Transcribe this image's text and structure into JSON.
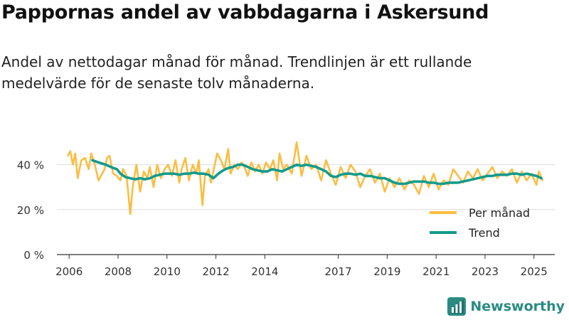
{
  "header": {
    "title": "Pappornas andel av vabbdagarna i Askersund",
    "subtitle": "Andel av nettodagar månad för månad. Trendlinjen är ett rullande medelvärde för de senaste tolv månaderna."
  },
  "brand": {
    "name": "Newsworthy",
    "color": "#2a8b82"
  },
  "chart_data": {
    "type": "line",
    "title": "Pappornas andel av vabbdagarna i Askersund",
    "xlabel": "",
    "ylabel": "",
    "xlim": [
      2005.5,
      2025.85
    ],
    "ylim": [
      0,
      50
    ],
    "yticks": [
      0,
      20,
      40
    ],
    "ytick_labels": [
      "0 %",
      "20 %",
      "40 %"
    ],
    "xticks": [
      2006,
      2008,
      2010,
      2012,
      2014,
      2017,
      2019,
      2021,
      2023,
      2025
    ],
    "xtick_labels": [
      "2006",
      "2008",
      "2010",
      "2012",
      "2014",
      "2017",
      "2019",
      "2021",
      "2023",
      "2025"
    ],
    "grid": true,
    "legend_position": "bottom-right",
    "series": [
      {
        "name": "Per månad",
        "color": "#fbbd41",
        "x": [
          2005.95,
          2006.05,
          2006.15,
          2006.25,
          2006.35,
          2006.5,
          2006.65,
          2006.8,
          2006.9,
          2007.05,
          2007.2,
          2007.35,
          2007.45,
          2007.55,
          2007.65,
          2007.8,
          2007.95,
          2008.1,
          2008.2,
          2008.35,
          2008.5,
          2008.6,
          2008.75,
          2008.9,
          2009.05,
          2009.2,
          2009.3,
          2009.45,
          2009.6,
          2009.75,
          2009.9,
          2010.05,
          2010.2,
          2010.35,
          2010.5,
          2010.6,
          2010.75,
          2010.9,
          2011.05,
          2011.2,
          2011.3,
          2011.45,
          2011.55,
          2011.7,
          2011.8,
          2011.95,
          2012.05,
          2012.2,
          2012.35,
          2012.5,
          2012.6,
          2012.75,
          2012.9,
          2013.05,
          2013.2,
          2013.3,
          2013.45,
          2013.6,
          2013.75,
          2013.9,
          2014.05,
          2014.2,
          2014.35,
          2014.5,
          2014.6,
          2014.75,
          2014.9,
          2015.1,
          2015.3,
          2015.5,
          2015.7,
          2015.9,
          2016.1,
          2016.3,
          2016.5,
          2016.7,
          2016.9,
          2017.1,
          2017.3,
          2017.5,
          2017.7,
          2017.9,
          2018.1,
          2018.3,
          2018.5,
          2018.7,
          2018.9,
          2019.1,
          2019.3,
          2019.5,
          2019.7,
          2019.9,
          2020.1,
          2020.3,
          2020.5,
          2020.7,
          2020.9,
          2021.1,
          2021.3,
          2021.5,
          2021.7,
          2021.9,
          2022.1,
          2022.3,
          2022.5,
          2022.7,
          2022.9,
          2023.1,
          2023.3,
          2023.5,
          2023.7,
          2023.9,
          2024.1,
          2024.3,
          2024.5,
          2024.7,
          2024.9,
          2025.1,
          2025.2,
          2025.35
        ],
        "values": [
          44,
          46,
          40,
          45,
          34,
          42,
          43,
          38,
          45,
          40,
          33,
          36,
          38,
          43,
          44,
          36,
          35,
          33,
          38,
          35,
          18,
          30,
          40,
          28,
          37,
          34,
          39,
          30,
          40,
          34,
          38,
          40,
          35,
          42,
          32,
          38,
          43,
          33,
          40,
          36,
          42,
          22,
          35,
          38,
          32,
          40,
          45,
          42,
          38,
          47,
          36,
          40,
          38,
          41,
          38,
          35,
          41,
          37,
          40,
          36,
          41,
          38,
          42,
          33,
          45,
          38,
          40,
          36,
          50,
          35,
          44,
          38,
          40,
          33,
          42,
          36,
          31,
          39,
          34,
          40,
          37,
          30,
          35,
          38,
          32,
          36,
          28,
          34,
          30,
          34,
          29,
          33,
          31,
          27,
          35,
          30,
          36,
          29,
          33,
          31,
          38,
          35,
          32,
          37,
          34,
          38,
          33,
          36,
          39,
          34,
          37,
          35,
          38,
          32,
          37,
          33,
          36,
          31,
          37,
          33
        ]
      },
      {
        "name": "Trend",
        "color": "#139b8c",
        "x": [
          2006.95,
          2007.2,
          2007.5,
          2007.7,
          2007.95,
          2008.1,
          2008.3,
          2008.5,
          2008.7,
          2008.9,
          2009.1,
          2009.3,
          2009.5,
          2009.7,
          2009.9,
          2010.1,
          2010.3,
          2010.5,
          2010.7,
          2010.9,
          2011.1,
          2011.3,
          2011.5,
          2011.7,
          2011.9,
          2012.1,
          2012.3,
          2012.5,
          2012.7,
          2012.9,
          2013.1,
          2013.3,
          2013.5,
          2013.7,
          2013.9,
          2014.1,
          2014.3,
          2014.5,
          2014.7,
          2014.9,
          2015.1,
          2015.3,
          2015.5,
          2015.7,
          2015.9,
          2016.1,
          2016.3,
          2016.5,
          2016.7,
          2016.9,
          2017.1,
          2017.3,
          2017.5,
          2017.7,
          2017.9,
          2018.1,
          2018.3,
          2018.5,
          2018.7,
          2018.9,
          2019.1,
          2019.3,
          2019.5,
          2019.7,
          2019.9,
          2020.1,
          2020.3,
          2020.5,
          2020.7,
          2020.9,
          2021.1,
          2021.3,
          2021.5,
          2021.7,
          2021.9,
          2022.1,
          2022.3,
          2022.5,
          2022.7,
          2022.9,
          2023.1,
          2023.3,
          2023.5,
          2023.7,
          2023.9,
          2024.1,
          2024.3,
          2024.5,
          2024.7,
          2024.9,
          2025.1,
          2025.3
        ],
        "values": [
          42,
          41,
          40,
          39,
          38,
          36,
          34.5,
          34,
          33.5,
          34,
          33.5,
          34,
          35,
          35.5,
          36,
          36,
          36,
          35.5,
          36,
          36,
          36.5,
          36,
          36,
          35.5,
          34,
          36,
          37.5,
          38.5,
          39,
          40,
          40,
          39,
          38,
          37.5,
          37,
          37,
          38,
          37.5,
          37,
          38,
          39,
          40,
          39.5,
          40,
          39.5,
          39,
          38,
          37,
          35,
          34.5,
          35.5,
          36,
          36,
          35.5,
          36,
          35,
          35,
          34.5,
          34,
          34,
          33,
          32,
          31.5,
          31.5,
          32,
          32.5,
          32.5,
          32.5,
          32,
          32,
          31.5,
          31.5,
          32,
          32,
          32,
          32.5,
          33,
          33.5,
          34,
          34.5,
          35,
          35,
          35.5,
          35.5,
          35.5,
          36,
          36,
          35.5,
          36,
          35.5,
          35,
          34
        ]
      }
    ]
  }
}
